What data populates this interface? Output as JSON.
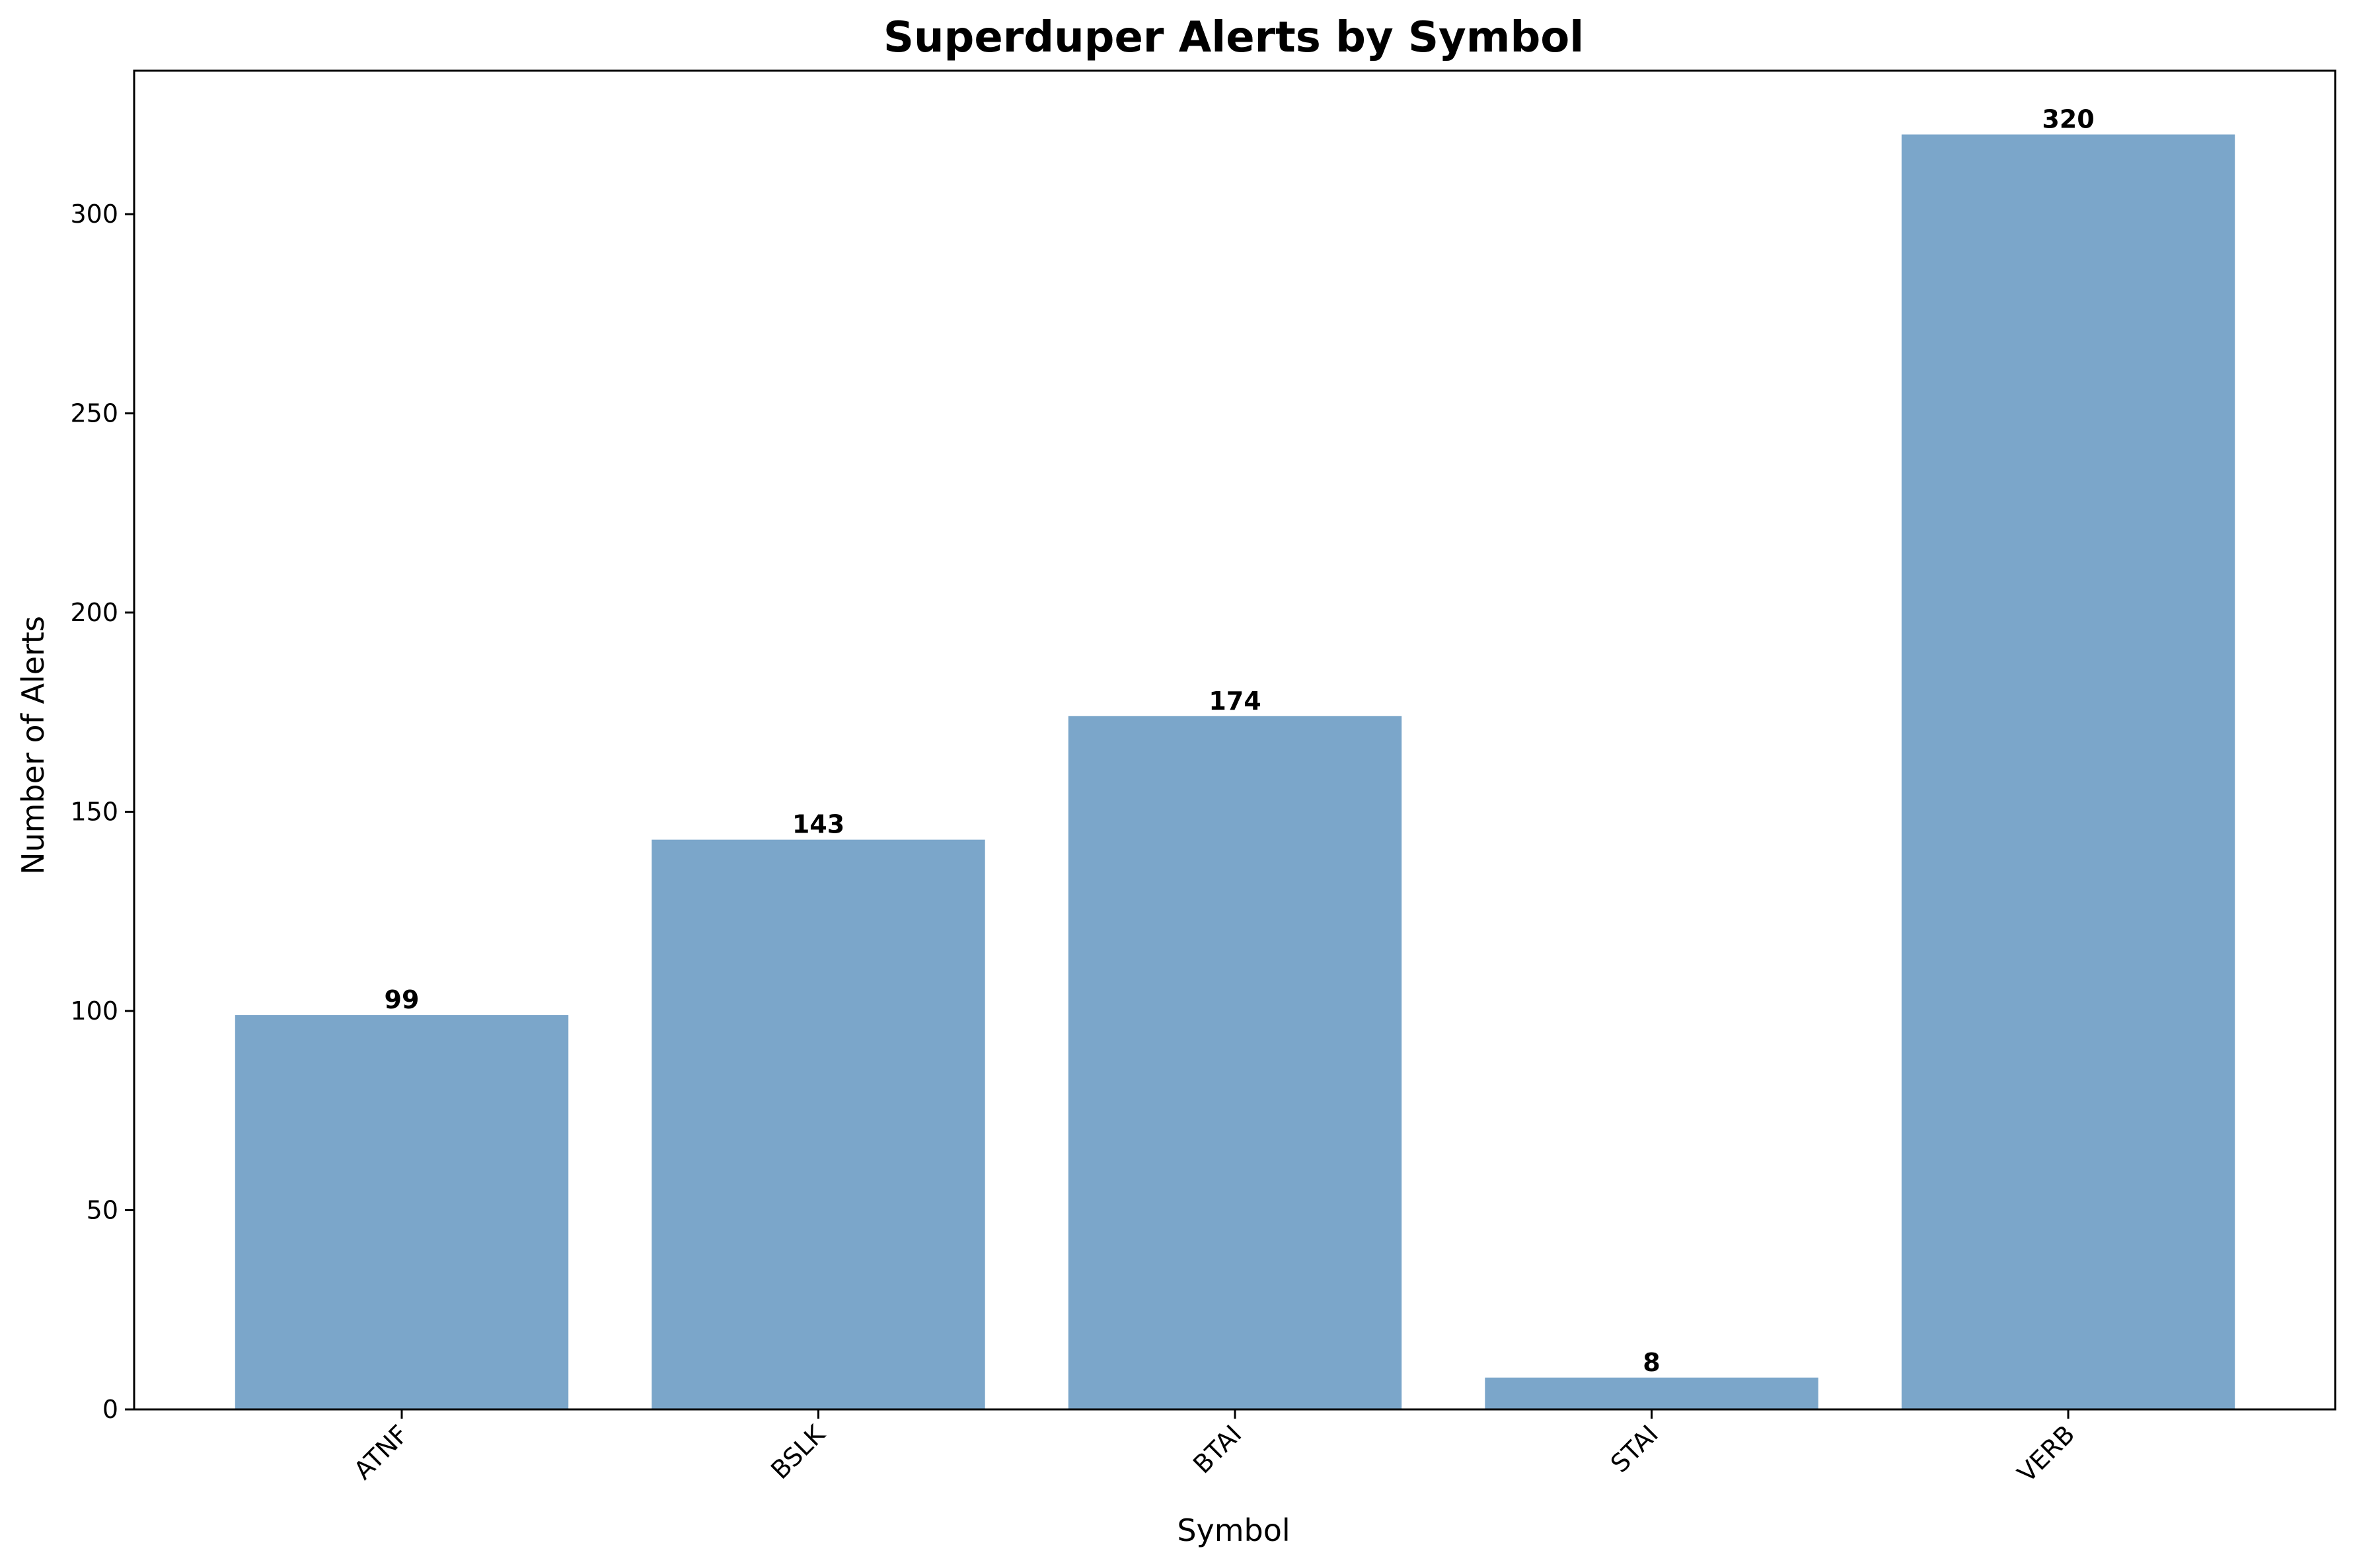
{
  "chart_data": {
    "type": "bar",
    "title": "Superduper Alerts by Symbol",
    "xlabel": "Symbol",
    "ylabel": "Number of Alerts",
    "categories": [
      "ATNF",
      "BSLK",
      "BTAI",
      "STAI",
      "VERB"
    ],
    "values": [
      99,
      143,
      174,
      8,
      320
    ],
    "data_labels": [
      "99",
      "143",
      "174",
      "8",
      "320"
    ],
    "ylim": [
      0,
      336
    ],
    "yticks": [
      0,
      50,
      100,
      150,
      200,
      250,
      300
    ],
    "ytick_labels": [
      "0",
      "50",
      "100",
      "150",
      "200",
      "250",
      "300"
    ],
    "grid": false,
    "legend": "none",
    "bar_color": "#7ba6ca",
    "xtick_rotation": "45 degrees"
  }
}
